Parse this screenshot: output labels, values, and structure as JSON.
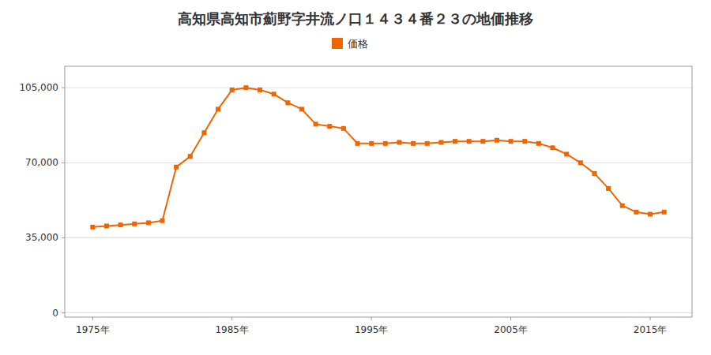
{
  "chart_data": {
    "type": "line",
    "title": "高知県高知市薊野字井流ノ口１４３４番２３の地価推移",
    "x": [
      1975,
      1976,
      1977,
      1978,
      1979,
      1980,
      1981,
      1982,
      1983,
      1984,
      1985,
      1986,
      1987,
      1988,
      1989,
      1990,
      1991,
      1992,
      1993,
      1994,
      1995,
      1996,
      1997,
      1998,
      1999,
      2000,
      2001,
      2002,
      2003,
      2004,
      2005,
      2006,
      2007,
      2008,
      2009,
      2010,
      2011,
      2012,
      2013,
      2014,
      2015,
      2016
    ],
    "series": [
      {
        "name": "価格",
        "color": "#EE6600",
        "marker": "square",
        "values": [
          40000,
          40500,
          41000,
          41500,
          42000,
          43000,
          68000,
          73000,
          84000,
          95000,
          104000,
          105000,
          104000,
          102000,
          98000,
          95000,
          88000,
          87000,
          86000,
          79000,
          79000,
          79000,
          79500,
          79000,
          79000,
          79500,
          80000,
          80000,
          80000,
          80500,
          80000,
          80000,
          79000,
          77000,
          74000,
          70000,
          65000,
          58000,
          50000,
          47000,
          46000,
          47000
        ]
      }
    ],
    "xlim": [
      1973,
      2018
    ],
    "xticks": [
      {
        "value": 1975,
        "label": "1975年"
      },
      {
        "value": 1985,
        "label": "1985年"
      },
      {
        "value": 1995,
        "label": "1995年"
      },
      {
        "value": 2005,
        "label": "2005年"
      },
      {
        "value": 2015,
        "label": "2015年"
      }
    ],
    "ylim": [
      -2000,
      115000
    ],
    "yticks": [
      0,
      {
        "value": 35000,
        "label": "35,000"
      },
      {
        "value": 70000,
        "label": "70,000"
      },
      {
        "value": 105000,
        "label": "105,000"
      }
    ],
    "grid": true,
    "legend": "top"
  }
}
